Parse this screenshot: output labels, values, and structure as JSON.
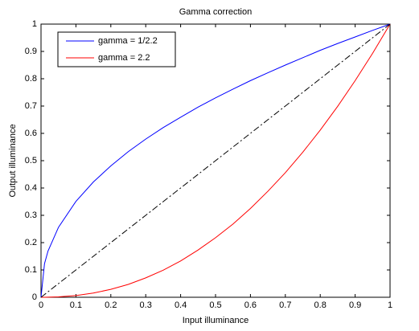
{
  "chart_data": {
    "type": "line",
    "title": "Gamma correction",
    "x_label": "Input illuminance",
    "y_label": "Output illuminance",
    "x": [
      0,
      0.01,
      0.02,
      0.05,
      0.1,
      0.15,
      0.2,
      0.25,
      0.3,
      0.35,
      0.4,
      0.45,
      0.5,
      0.55,
      0.6,
      0.65,
      0.7,
      0.75,
      0.8,
      0.85,
      0.9,
      0.95,
      1
    ],
    "series": [
      {
        "name": "gamma = 1/2.2",
        "color": "#0000ff",
        "style": "solid",
        "values": [
          0,
          0.123,
          0.169,
          0.256,
          0.351,
          0.422,
          0.481,
          0.533,
          0.579,
          0.621,
          0.659,
          0.696,
          0.73,
          0.762,
          0.793,
          0.822,
          0.85,
          0.877,
          0.904,
          0.929,
          0.953,
          0.977,
          1
        ]
      },
      {
        "name": "gamma = 2.2",
        "color": "#ff0000",
        "style": "solid",
        "values": [
          0,
          0,
          0.0002,
          0.0014,
          0.0063,
          0.0154,
          0.029,
          0.047,
          0.071,
          0.099,
          0.133,
          0.173,
          0.218,
          0.268,
          0.325,
          0.388,
          0.456,
          0.531,
          0.612,
          0.699,
          0.793,
          0.893,
          1
        ]
      },
      {
        "color": "#000000",
        "style": "dashdot",
        "values": [
          0,
          0.01,
          0.02,
          0.05,
          0.1,
          0.15,
          0.2,
          0.25,
          0.3,
          0.35,
          0.4,
          0.45,
          0.5,
          0.55,
          0.6,
          0.65,
          0.7,
          0.75,
          0.8,
          0.85,
          0.9,
          0.95,
          1
        ]
      }
    ],
    "xlim": [
      0,
      1
    ],
    "ylim": [
      0,
      1
    ],
    "xticks": [
      0,
      0.1,
      0.2,
      0.3,
      0.4,
      0.5,
      0.6,
      0.7,
      0.8,
      0.9,
      1
    ],
    "yticks": [
      0,
      0.1,
      0.2,
      0.3,
      0.4,
      0.5,
      0.6,
      0.7,
      0.8,
      0.9,
      1
    ],
    "grid": false,
    "legend": "upper-left"
  }
}
